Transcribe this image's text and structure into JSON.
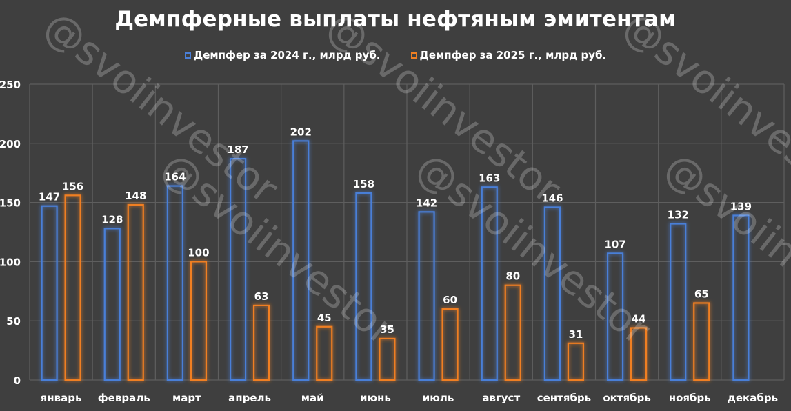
{
  "chart_data": {
    "type": "bar",
    "title": "Демпферные выплаты нефтяным эмитентам",
    "categories": [
      "январь",
      "февраль",
      "март",
      "апрель",
      "май",
      "июнь",
      "июль",
      "август",
      "сентябрь",
      "октябрь",
      "ноябрь",
      "декабрь"
    ],
    "series": [
      {
        "name": "Демпфер за 2024 г., млрд руб.",
        "color": "#4a7fd8",
        "values": [
          147,
          128,
          164,
          187,
          202,
          158,
          142,
          163,
          146,
          107,
          132,
          139
        ]
      },
      {
        "name": "Демпфер за 2025 г., млрд руб.",
        "color": "#f07f22",
        "values": [
          156,
          148,
          100,
          63,
          45,
          35,
          60,
          80,
          31,
          44,
          65,
          null
        ]
      }
    ],
    "ylim": [
      0,
      250
    ],
    "yticks": [
      0,
      50,
      100,
      150,
      200,
      250
    ],
    "grid": true,
    "legend_position": "top"
  },
  "watermark": "@svoiinvestor"
}
